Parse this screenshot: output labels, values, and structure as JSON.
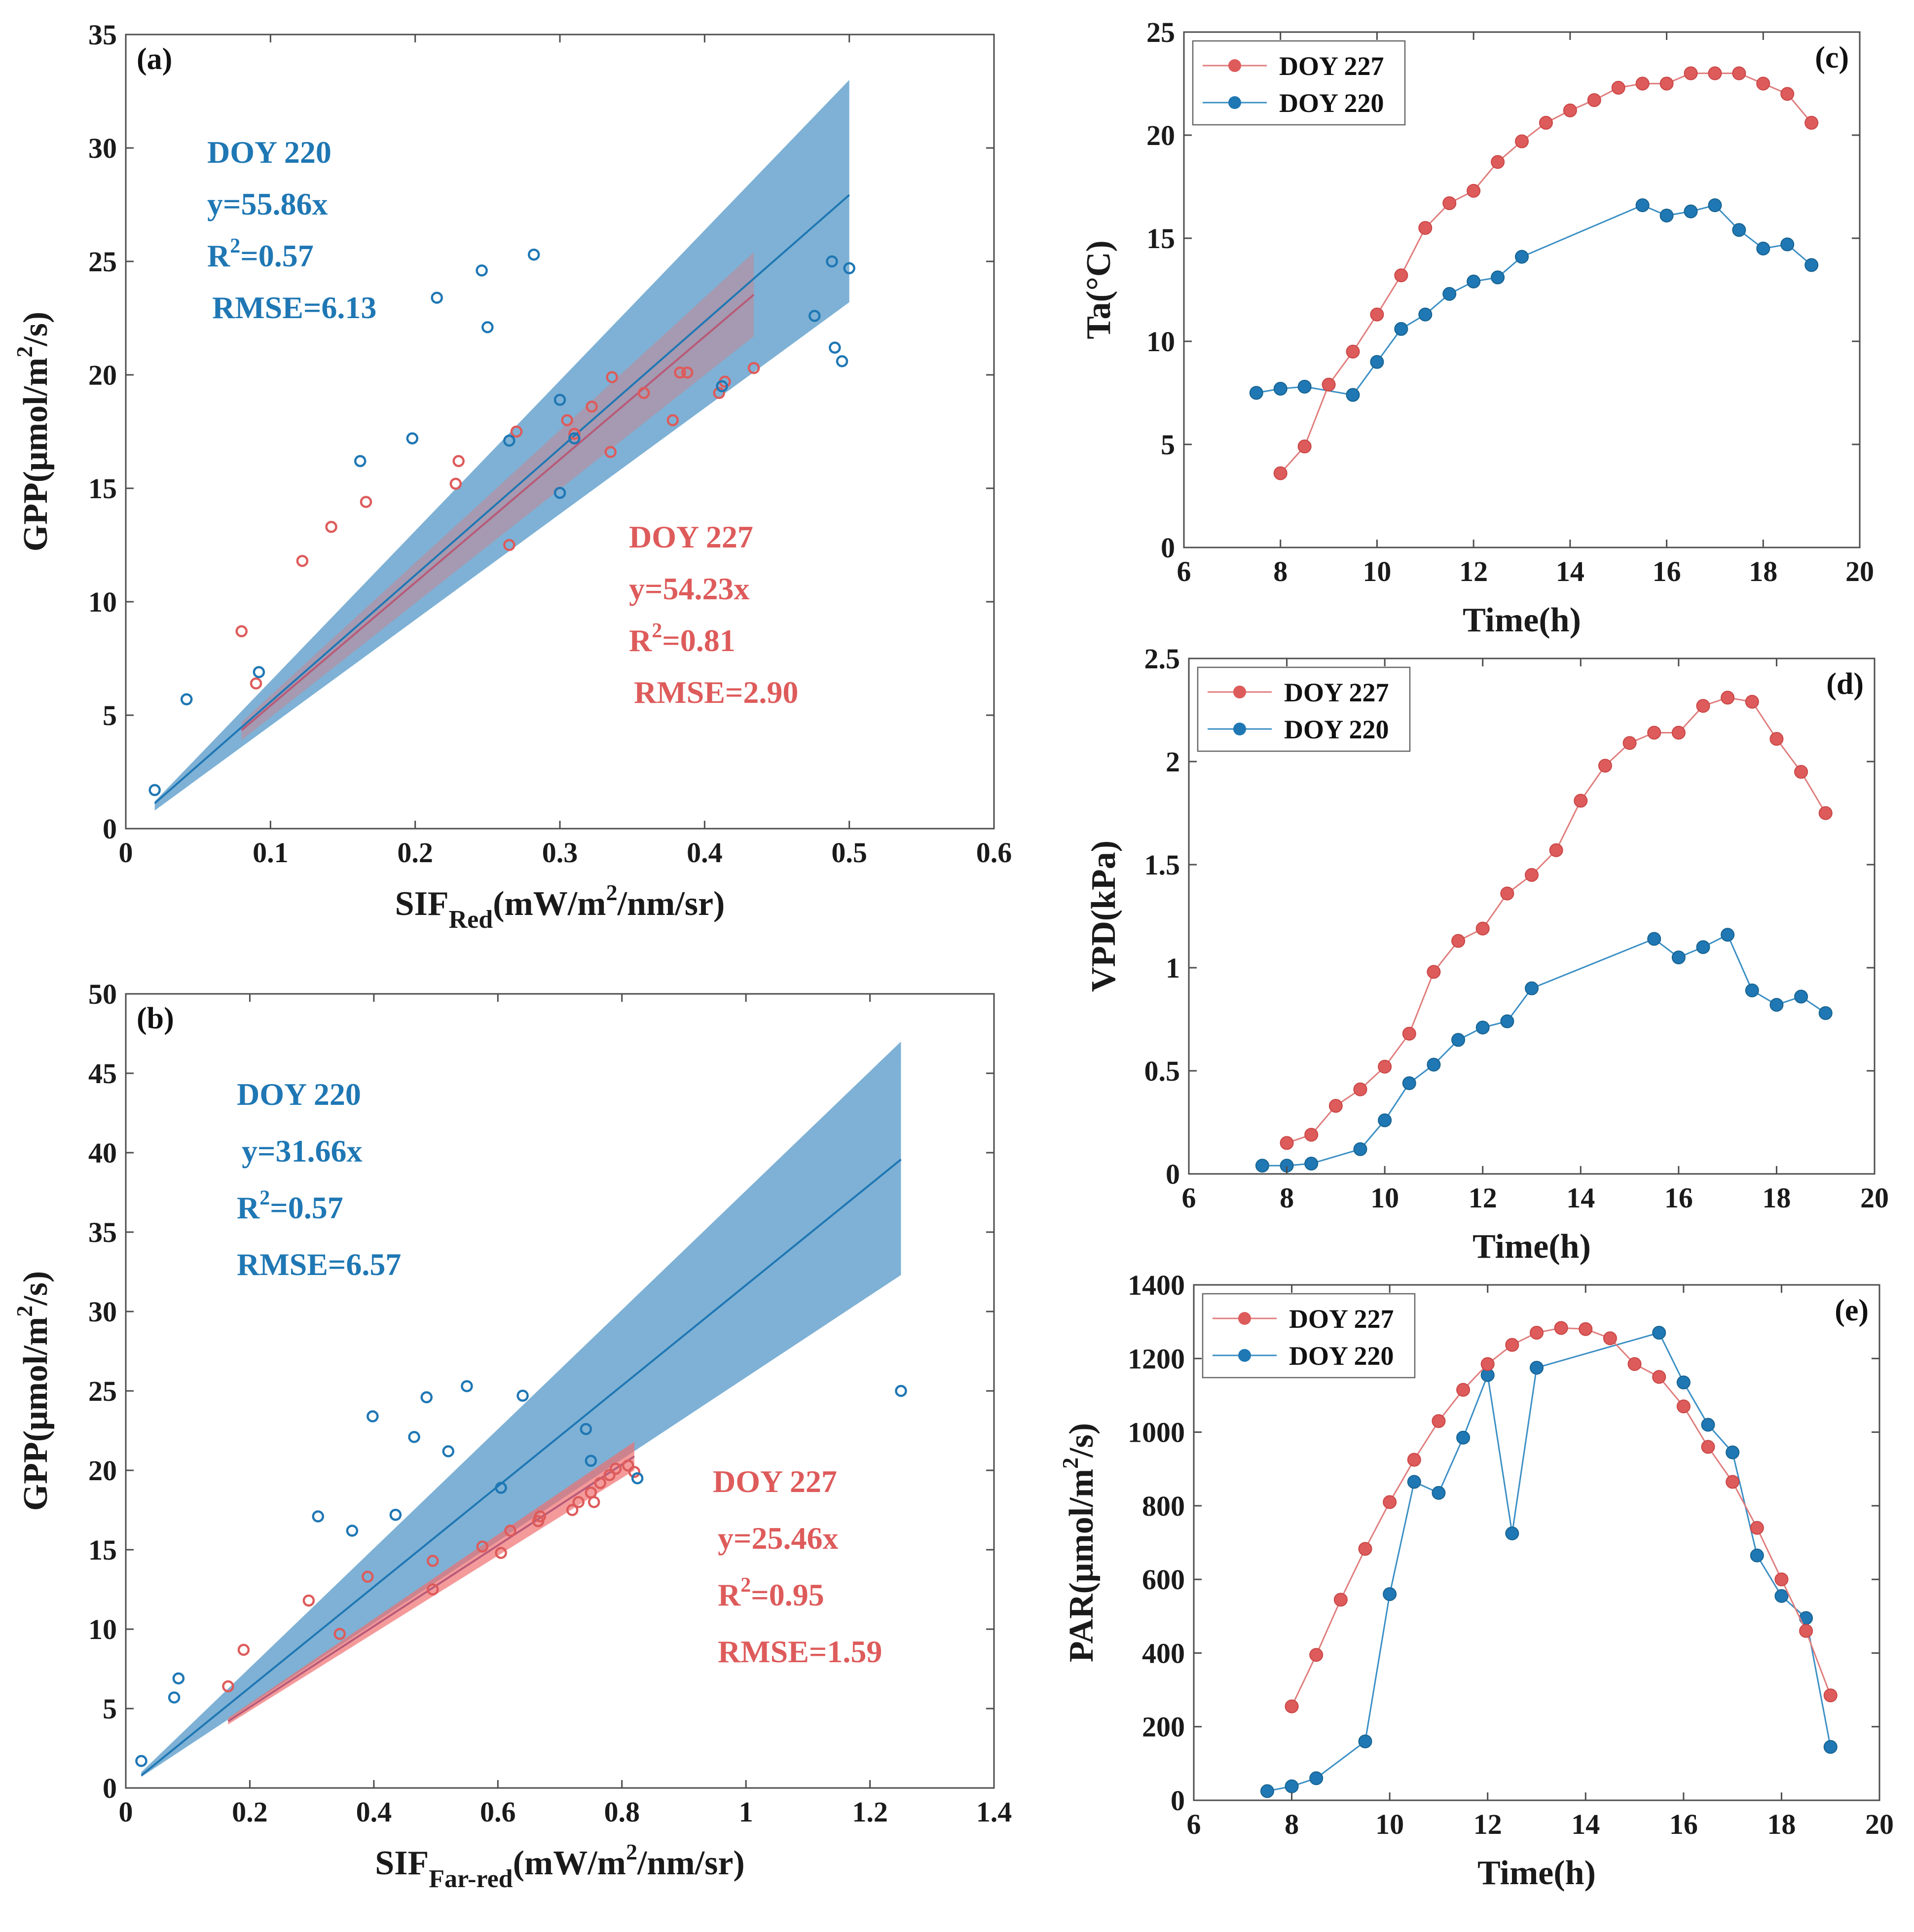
{
  "colors": {
    "doy220": "#1f77b4",
    "doy227": "#de5b5b",
    "band220": "#5a9bc9",
    "band227": "#ef6f6f",
    "frame": "#555555"
  },
  "panels": [
    {
      "id": "a",
      "letter": "(a)",
      "xlabel_main": "SIF",
      "xlabel_sub": "Red",
      "xlabel_rest": "(mW/m",
      "xlabel_sup": "2",
      "xlabel_end": "/nm/sr)",
      "ylabel_main": "GPP(μmol/m",
      "ylabel_sup": "2",
      "ylabel_end": "/s)",
      "annot220": {
        "title": "DOY 220",
        "eq": "y=55.86x",
        "r2_label": "R",
        "r2_sup": "2",
        "r2_val": "=0.57",
        "rmse": "RMSE=6.13"
      },
      "annot227": {
        "title": "DOY 227",
        "eq": "y=54.23x",
        "r2_label": "R",
        "r2_sup": "2",
        "r2_val": "=0.81",
        "rmse": "RMSE=2.90"
      }
    },
    {
      "id": "b",
      "letter": "(b)",
      "xlabel_main": "SIF",
      "xlabel_sub": "Far-red",
      "xlabel_rest": "(mW/m",
      "xlabel_sup": "2",
      "xlabel_end": "/nm/sr)",
      "ylabel_main": "GPP(μmol/m",
      "ylabel_sup": "2",
      "ylabel_end": "/s)",
      "annot220": {
        "title": "DOY 220",
        "eq": "y=31.66x",
        "r2_label": "R",
        "r2_sup": "2",
        "r2_val": "=0.57",
        "rmse": "RMSE=6.57"
      },
      "annot227": {
        "title": "DOY 227",
        "eq": "y=25.46x",
        "r2_label": "R",
        "r2_sup": "2",
        "r2_val": "=0.95",
        "rmse": "RMSE=1.59"
      }
    },
    {
      "id": "c",
      "letter": "(c)",
      "xlabel": "Time(h)",
      "ylabel": "Ta(°C)"
    },
    {
      "id": "d",
      "letter": "(d)",
      "xlabel": "Time(h)",
      "ylabel": "VPD(kPa)"
    },
    {
      "id": "e",
      "letter": "(e)",
      "xlabel": "Time(h)",
      "ylabel_main": "PAR(μmol/m",
      "ylabel_sup": "2",
      "ylabel_end": "/s)"
    }
  ],
  "chart_data": [
    {
      "id": "a",
      "type": "scatter",
      "xlim": [
        0,
        0.6
      ],
      "xticks": [
        0,
        0.1,
        0.2,
        0.3,
        0.4,
        0.5,
        0.6
      ],
      "xticklabels": [
        "0",
        "0.1",
        "0.2",
        "0.3",
        "0.4",
        "0.5",
        "0.6"
      ],
      "ylim": [
        0,
        35
      ],
      "yticks": [
        0,
        5,
        10,
        15,
        20,
        25,
        30,
        35
      ],
      "yticklabels": [
        "0",
        "5",
        "10",
        "15",
        "20",
        "25",
        "30",
        "35"
      ],
      "series": [
        {
          "name": "DOY 220",
          "slope": 55.86,
          "fit_x": [
            0.02,
            0.5
          ],
          "band_low": [
            0.8,
            23.2
          ],
          "band_high": [
            1.2,
            33.0
          ],
          "points": [
            [
              0.02,
              1.7
            ],
            [
              0.042,
              5.7
            ],
            [
              0.092,
              6.9
            ],
            [
              0.162,
              16.2
            ],
            [
              0.198,
              17.2
            ],
            [
              0.215,
              23.4
            ],
            [
              0.246,
              24.6
            ],
            [
              0.25,
              22.1
            ],
            [
              0.282,
              25.3
            ],
            [
              0.3,
              18.9
            ],
            [
              0.3,
              14.8
            ],
            [
              0.31,
              17.2
            ],
            [
              0.265,
              17.1
            ],
            [
              0.412,
              19.5
            ],
            [
              0.476,
              22.6
            ],
            [
              0.488,
              25.0
            ],
            [
              0.49,
              21.2
            ],
            [
              0.495,
              20.6
            ],
            [
              0.5,
              24.7
            ]
          ]
        },
        {
          "name": "DOY 227",
          "slope": 54.23,
          "fit_x": [
            0.08,
            0.434
          ],
          "band_low": [
            3.9,
            21.7
          ],
          "band_high": [
            4.7,
            25.4
          ],
          "points": [
            [
              0.08,
              8.7
            ],
            [
              0.09,
              6.4
            ],
            [
              0.122,
              11.8
            ],
            [
              0.142,
              13.3
            ],
            [
              0.166,
              14.4
            ],
            [
              0.228,
              15.2
            ],
            [
              0.23,
              16.2
            ],
            [
              0.265,
              12.5
            ],
            [
              0.27,
              17.5
            ],
            [
              0.305,
              18.0
            ],
            [
              0.31,
              17.4
            ],
            [
              0.322,
              18.6
            ],
            [
              0.335,
              16.6
            ],
            [
              0.336,
              19.9
            ],
            [
              0.358,
              19.2
            ],
            [
              0.378,
              18.0
            ],
            [
              0.383,
              20.1
            ],
            [
              0.388,
              20.1
            ],
            [
              0.41,
              19.2
            ],
            [
              0.414,
              19.7
            ],
            [
              0.434,
              20.3
            ]
          ]
        }
      ]
    },
    {
      "id": "b",
      "type": "scatter",
      "xlim": [
        0,
        1.4
      ],
      "xticks": [
        0,
        0.2,
        0.4,
        0.6,
        0.8,
        1,
        1.2,
        1.4
      ],
      "xticklabels": [
        "0",
        "0.2",
        "0.4",
        "0.6",
        "0.8",
        "1",
        "1.2",
        "1.4"
      ],
      "ylim": [
        0,
        50
      ],
      "yticks": [
        0,
        5,
        10,
        15,
        20,
        25,
        30,
        35,
        40,
        45,
        50
      ],
      "yticklabels": [
        "0",
        "5",
        "10",
        "15",
        "20",
        "25",
        "30",
        "35",
        "40",
        "45",
        "50"
      ],
      "series": [
        {
          "name": "DOY 220",
          "slope": 31.66,
          "fit_x": [
            0.025,
            1.25
          ],
          "band_low": [
            0.7,
            32.3
          ],
          "band_high": [
            1.0,
            47.0
          ],
          "points": [
            [
              0.025,
              1.7
            ],
            [
              0.078,
              5.7
            ],
            [
              0.085,
              6.9
            ],
            [
              0.31,
              17.1
            ],
            [
              0.365,
              16.2
            ],
            [
              0.398,
              23.4
            ],
            [
              0.435,
              17.2
            ],
            [
              0.465,
              22.1
            ],
            [
              0.485,
              24.6
            ],
            [
              0.52,
              21.2
            ],
            [
              0.55,
              25.3
            ],
            [
              0.605,
              18.9
            ],
            [
              0.64,
              24.7
            ],
            [
              0.742,
              22.6
            ],
            [
              0.75,
              20.6
            ],
            [
              0.825,
              19.5
            ],
            [
              1.25,
              25.0
            ]
          ]
        },
        {
          "name": "DOY 227",
          "slope": 25.46,
          "fit_x": [
            0.165,
            0.82
          ],
          "band_low": [
            4.0,
            20.0
          ],
          "band_high": [
            4.4,
            21.8
          ],
          "points": [
            [
              0.165,
              6.4
            ],
            [
              0.19,
              8.7
            ],
            [
              0.295,
              11.8
            ],
            [
              0.345,
              9.7
            ],
            [
              0.39,
              13.3
            ],
            [
              0.495,
              14.3
            ],
            [
              0.495,
              12.5
            ],
            [
              0.575,
              15.2
            ],
            [
              0.605,
              14.8
            ],
            [
              0.62,
              16.2
            ],
            [
              0.665,
              16.8
            ],
            [
              0.668,
              17.1
            ],
            [
              0.72,
              17.5
            ],
            [
              0.73,
              18.0
            ],
            [
              0.75,
              18.6
            ],
            [
              0.755,
              18.0
            ],
            [
              0.765,
              19.2
            ],
            [
              0.78,
              19.7
            ],
            [
              0.79,
              20.1
            ],
            [
              0.81,
              20.3
            ],
            [
              0.82,
              19.9
            ]
          ]
        }
      ]
    },
    {
      "id": "c",
      "type": "line",
      "xlim": [
        6,
        20
      ],
      "xticks": [
        6,
        8,
        10,
        12,
        14,
        16,
        18,
        20
      ],
      "xticklabels": [
        "6",
        "8",
        "10",
        "12",
        "14",
        "16",
        "18",
        "20"
      ],
      "ylim": [
        0,
        25
      ],
      "yticks": [
        0,
        5,
        10,
        15,
        20,
        25
      ],
      "yticklabels": [
        "0",
        "5",
        "10",
        "15",
        "20",
        "25"
      ],
      "series": [
        {
          "name": "DOY 227",
          "x": [
            8,
            8.5,
            9,
            9.5,
            10,
            10.5,
            11,
            11.5,
            12,
            12.5,
            13,
            13.5,
            14,
            14.5,
            15,
            15.5,
            16,
            16.5,
            17,
            17.5,
            18,
            18.5,
            19
          ],
          "y": [
            3.6,
            4.9,
            7.9,
            9.5,
            11.3,
            13.2,
            15.5,
            16.7,
            17.3,
            18.7,
            19.7,
            20.6,
            21.2,
            21.7,
            22.3,
            22.5,
            22.5,
            23.0,
            23.0,
            23.0,
            22.5,
            22.0,
            20.6
          ]
        },
        {
          "name": "DOY 220",
          "x": [
            7.5,
            8,
            8.5,
            9.5,
            10,
            10.5,
            11,
            11.5,
            12,
            12.5,
            13,
            15.5,
            16,
            16.5,
            17,
            17.5,
            18,
            18.5,
            19
          ],
          "y": [
            7.5,
            7.7,
            7.8,
            7.4,
            9.0,
            10.6,
            11.3,
            12.3,
            12.9,
            13.1,
            14.1,
            16.6,
            16.1,
            16.3,
            16.6,
            15.4,
            14.5,
            14.7,
            13.7
          ]
        }
      ]
    },
    {
      "id": "d",
      "type": "line",
      "xlim": [
        6,
        20
      ],
      "xticks": [
        6,
        8,
        10,
        12,
        14,
        16,
        18,
        20
      ],
      "xticklabels": [
        "6",
        "8",
        "10",
        "12",
        "14",
        "16",
        "18",
        "20"
      ],
      "ylim": [
        0,
        2.5
      ],
      "yticks": [
        0,
        0.5,
        1,
        1.5,
        2,
        2.5
      ],
      "yticklabels": [
        "0",
        "0.5",
        "1",
        "1.5",
        "2",
        "2.5"
      ],
      "series": [
        {
          "name": "DOY 227",
          "x": [
            8,
            8.5,
            9,
            9.5,
            10,
            10.5,
            11,
            11.5,
            12,
            12.5,
            13,
            13.5,
            14,
            14.5,
            15,
            15.5,
            16,
            16.5,
            17,
            17.5,
            18,
            18.5,
            19
          ],
          "y": [
            0.15,
            0.19,
            0.33,
            0.41,
            0.52,
            0.68,
            0.98,
            1.13,
            1.19,
            1.36,
            1.45,
            1.57,
            1.81,
            1.98,
            2.09,
            2.14,
            2.14,
            2.27,
            2.31,
            2.29,
            2.11,
            1.95,
            1.75
          ]
        },
        {
          "name": "DOY 220",
          "x": [
            7.5,
            8,
            8.5,
            9.5,
            10,
            10.5,
            11,
            11.5,
            12,
            12.5,
            13,
            15.5,
            16,
            16.5,
            17,
            17.5,
            18,
            18.5,
            19
          ],
          "y": [
            0.04,
            0.04,
            0.05,
            0.12,
            0.26,
            0.44,
            0.53,
            0.65,
            0.71,
            0.74,
            0.9,
            1.14,
            1.05,
            1.1,
            1.16,
            0.89,
            0.82,
            0.86,
            0.78
          ]
        }
      ]
    },
    {
      "id": "e",
      "type": "line",
      "xlim": [
        6,
        20
      ],
      "xticks": [
        6,
        8,
        10,
        12,
        14,
        16,
        18,
        20
      ],
      "xticklabels": [
        "6",
        "8",
        "10",
        "12",
        "14",
        "16",
        "18",
        "20"
      ],
      "ylim": [
        0,
        1400
      ],
      "yticks": [
        0,
        200,
        400,
        600,
        800,
        1000,
        1200,
        1400
      ],
      "yticklabels": [
        "0",
        "200",
        "400",
        "600",
        "800",
        "1000",
        "1200",
        "1400"
      ],
      "series": [
        {
          "name": "DOY 227",
          "x": [
            8,
            8.5,
            9,
            9.5,
            10,
            10.5,
            11,
            11.5,
            12,
            12.5,
            13,
            13.5,
            14,
            14.5,
            15,
            15.5,
            16,
            16.5,
            17,
            17.5,
            18,
            18.5,
            19
          ],
          "y": [
            255,
            395,
            545,
            683,
            810,
            925,
            1030,
            1115,
            1185,
            1237,
            1270,
            1283,
            1280,
            1255,
            1185,
            1150,
            1070,
            960,
            865,
            740,
            600,
            460,
            285
          ]
        },
        {
          "name": "DOY 220",
          "x": [
            7.5,
            8,
            8.5,
            9.5,
            10,
            10.5,
            11,
            11.5,
            12,
            12.5,
            13,
            15.5,
            16,
            16.5,
            17,
            17.5,
            18,
            18.5,
            19
          ],
          "y": [
            25,
            38,
            60,
            160,
            560,
            865,
            835,
            985,
            1155,
            725,
            1175,
            1270,
            1135,
            1020,
            945,
            665,
            555,
            495,
            145
          ]
        }
      ]
    }
  ]
}
